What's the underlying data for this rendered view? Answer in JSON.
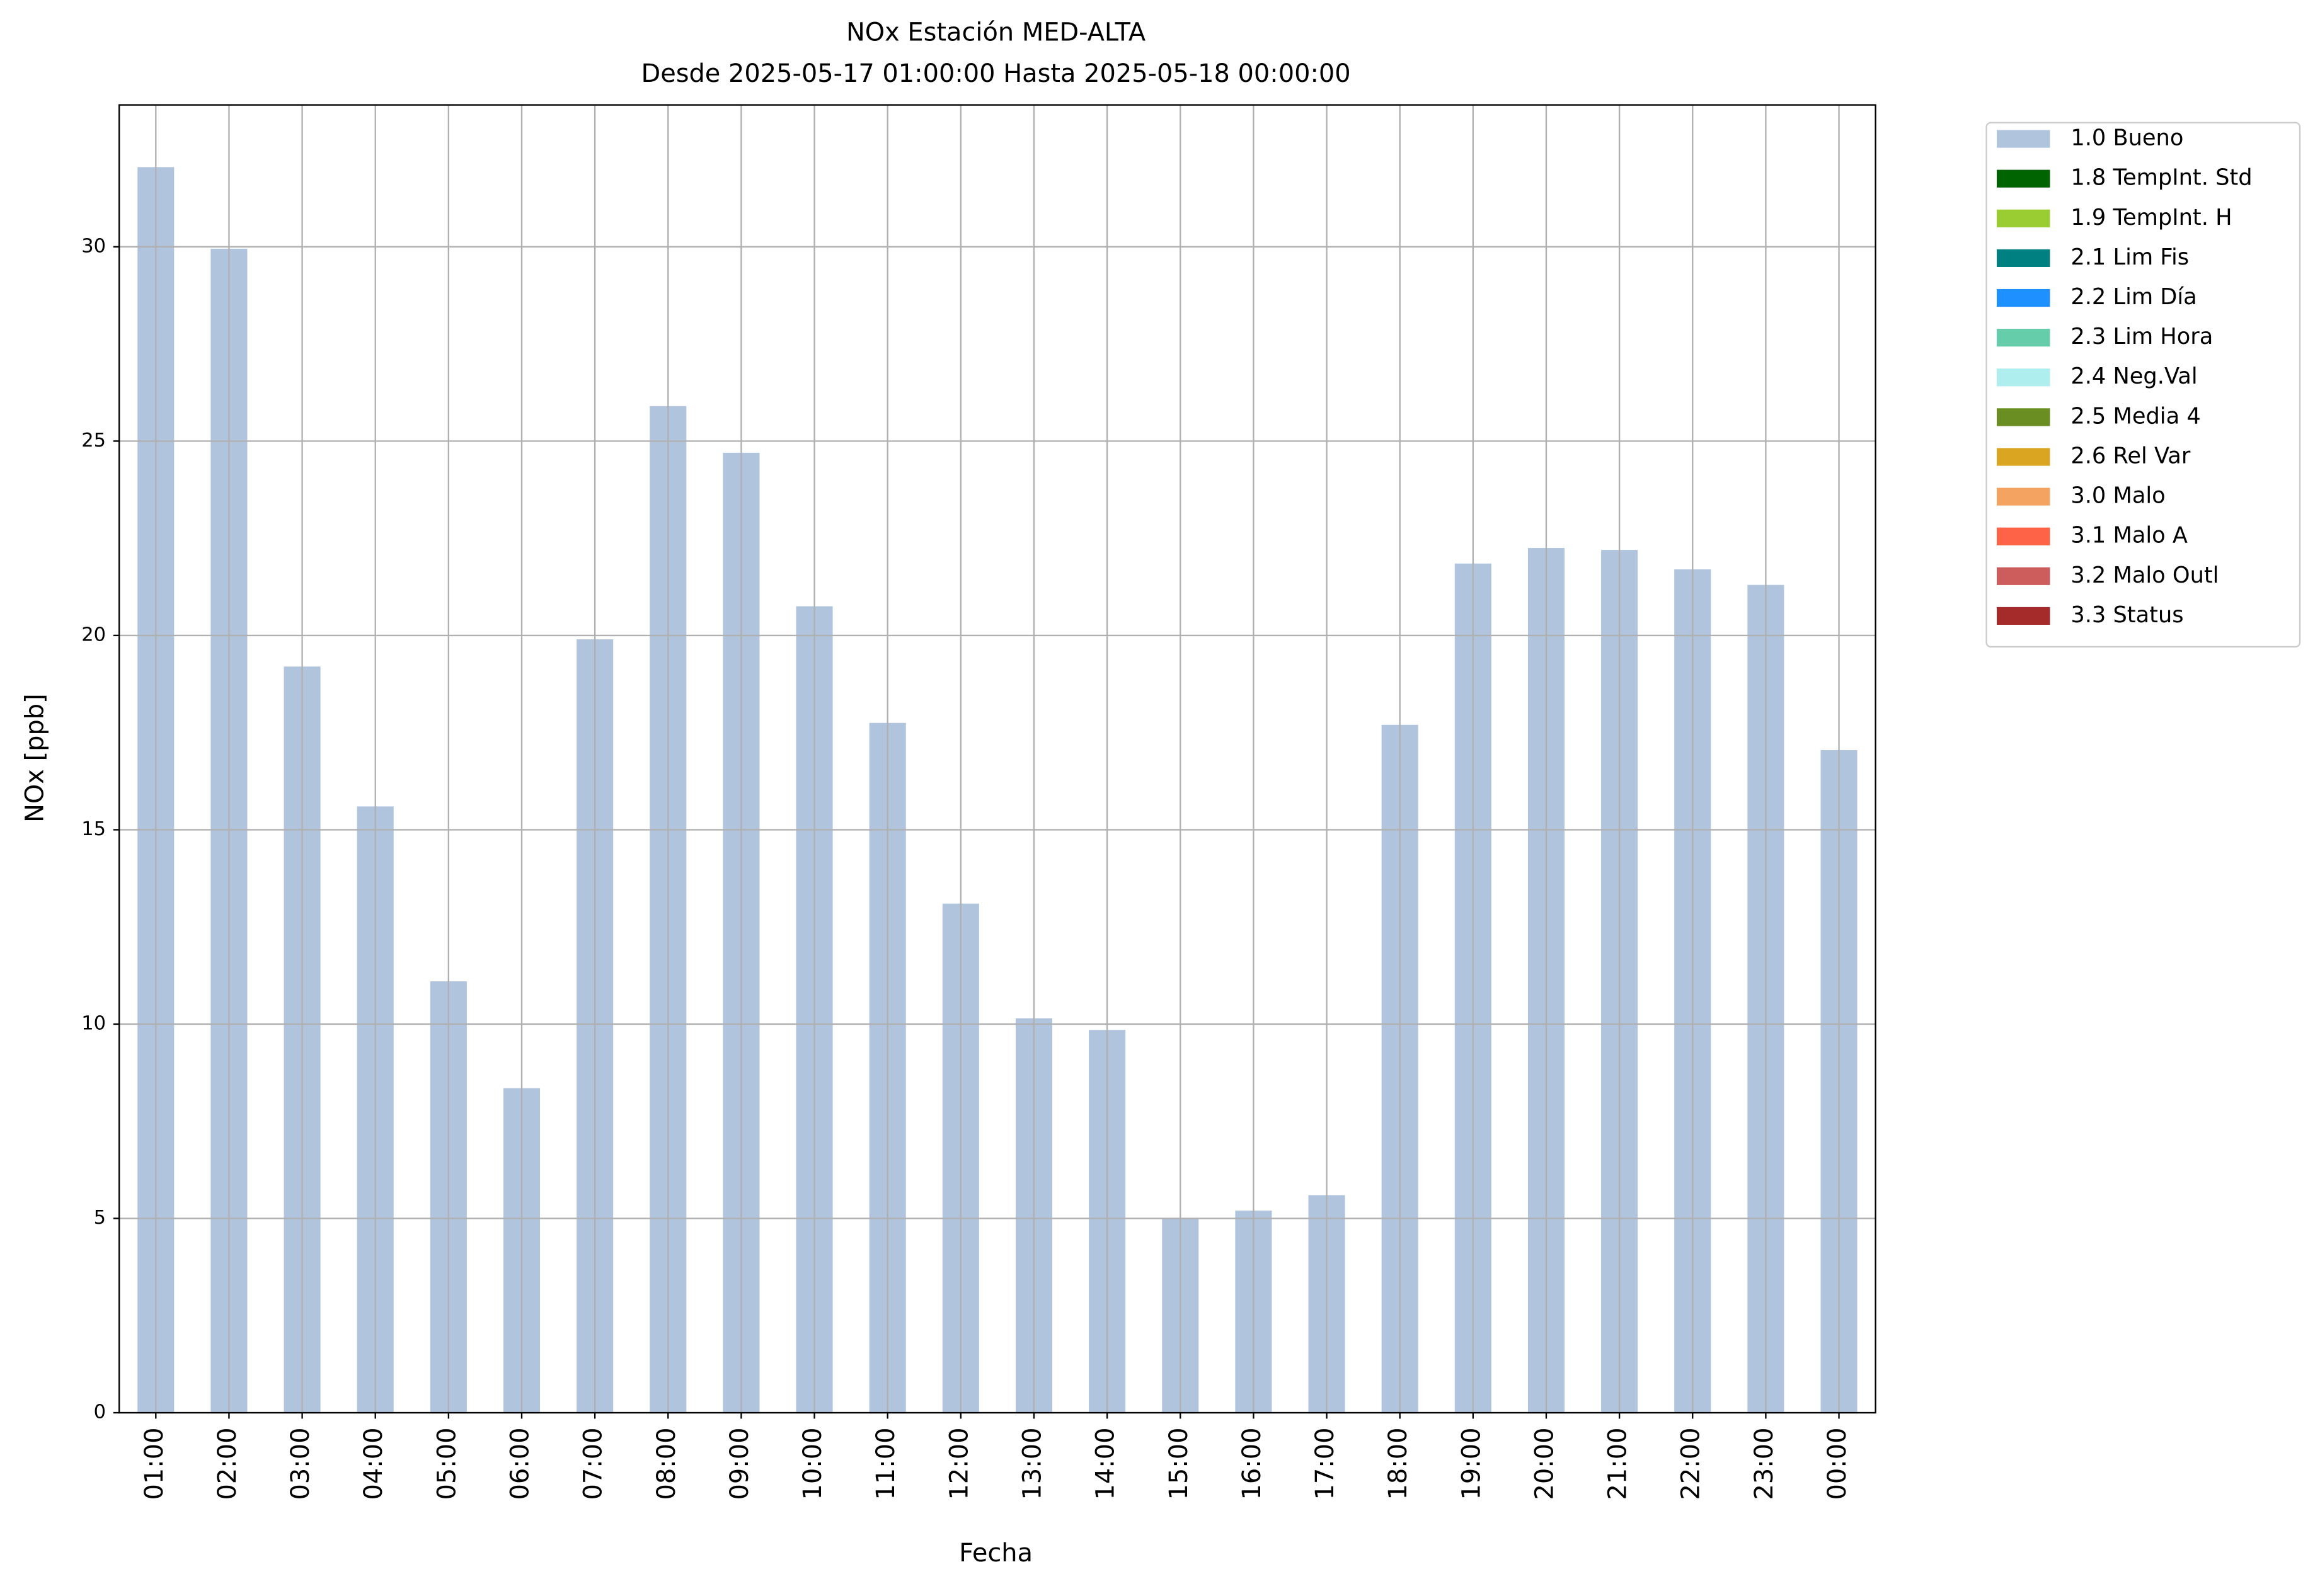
{
  "chart_data": {
    "type": "bar",
    "stacked": true,
    "title": "NOx Estación MED-ALTA",
    "subtitle": "Desde 2025-05-17 01:00:00 Hasta 2025-05-18 00:00:00",
    "xlabel": "Fecha",
    "ylabel": "NOx [ppb]",
    "categories": [
      "01:00",
      "02:00",
      "03:00",
      "04:00",
      "05:00",
      "06:00",
      "07:00",
      "08:00",
      "09:00",
      "10:00",
      "11:00",
      "12:00",
      "13:00",
      "14:00",
      "15:00",
      "16:00",
      "17:00",
      "18:00",
      "19:00",
      "20:00",
      "21:00",
      "22:00",
      "23:00",
      "00:00"
    ],
    "series": [
      {
        "name": "1.0 Bueno",
        "color": "#b0c4de",
        "values": [
          32.05,
          29.95,
          19.2,
          15.6,
          11.1,
          8.35,
          19.9,
          25.9,
          24.7,
          20.75,
          17.75,
          13.1,
          10.15,
          9.85,
          5.0,
          5.2,
          5.6,
          17.7,
          21.85,
          22.25,
          22.2,
          21.7,
          21.3,
          17.05
        ]
      },
      {
        "name": "1.8 TempInt. Std",
        "color": "#006400",
        "values": [
          0,
          0,
          0,
          0,
          0,
          0,
          0,
          0,
          0,
          0,
          0,
          0,
          0,
          0,
          0,
          0,
          0,
          0,
          0,
          0,
          0,
          0,
          0,
          0
        ]
      },
      {
        "name": "1.9 TempInt. H",
        "color": "#9acd32",
        "values": [
          0,
          0,
          0,
          0,
          0,
          0,
          0,
          0,
          0,
          0,
          0,
          0,
          0,
          0,
          0,
          0,
          0,
          0,
          0,
          0,
          0,
          0,
          0,
          0
        ]
      },
      {
        "name": "2.1 Lim Fis",
        "color": "#008080",
        "values": [
          0,
          0,
          0,
          0,
          0,
          0,
          0,
          0,
          0,
          0,
          0,
          0,
          0,
          0,
          0,
          0,
          0,
          0,
          0,
          0,
          0,
          0,
          0,
          0
        ]
      },
      {
        "name": "2.2 Lim Día",
        "color": "#1e90ff",
        "values": [
          0,
          0,
          0,
          0,
          0,
          0,
          0,
          0,
          0,
          0,
          0,
          0,
          0,
          0,
          0,
          0,
          0,
          0,
          0,
          0,
          0,
          0,
          0,
          0
        ]
      },
      {
        "name": "2.3 Lim Hora",
        "color": "#66cdaa",
        "values": [
          0,
          0,
          0,
          0,
          0,
          0,
          0,
          0,
          0,
          0,
          0,
          0,
          0,
          0,
          0,
          0,
          0,
          0,
          0,
          0,
          0,
          0,
          0,
          0
        ]
      },
      {
        "name": "2.4 Neg.Val",
        "color": "#afeeee",
        "values": [
          0,
          0,
          0,
          0,
          0,
          0,
          0,
          0,
          0,
          0,
          0,
          0,
          0,
          0,
          0,
          0,
          0,
          0,
          0,
          0,
          0,
          0,
          0,
          0
        ]
      },
      {
        "name": "2.5 Media 4",
        "color": "#6b8e23",
        "values": [
          0,
          0,
          0,
          0,
          0,
          0,
          0,
          0,
          0,
          0,
          0,
          0,
          0,
          0,
          0,
          0,
          0,
          0,
          0,
          0,
          0,
          0,
          0,
          0
        ]
      },
      {
        "name": "2.6 Rel Var",
        "color": "#daa520",
        "values": [
          0,
          0,
          0,
          0,
          0,
          0,
          0,
          0,
          0,
          0,
          0,
          0,
          0,
          0,
          0,
          0,
          0,
          0,
          0,
          0,
          0,
          0,
          0,
          0
        ]
      },
      {
        "name": "3.0 Malo",
        "color": "#f4a460",
        "values": [
          0,
          0,
          0,
          0,
          0,
          0,
          0,
          0,
          0,
          0,
          0,
          0,
          0,
          0,
          0,
          0,
          0,
          0,
          0,
          0,
          0,
          0,
          0,
          0
        ]
      },
      {
        "name": "3.1 Malo A",
        "color": "#ff6347",
        "values": [
          0,
          0,
          0,
          0,
          0,
          0,
          0,
          0,
          0,
          0,
          0,
          0,
          0,
          0,
          0,
          0,
          0,
          0,
          0,
          0,
          0,
          0,
          0,
          0
        ]
      },
      {
        "name": "3.2 Malo Outl",
        "color": "#cd5c5c",
        "values": [
          0,
          0,
          0,
          0,
          0,
          0,
          0,
          0,
          0,
          0,
          0,
          0,
          0,
          0,
          0,
          0,
          0,
          0,
          0,
          0,
          0,
          0,
          0,
          0
        ]
      },
      {
        "name": "3.3 Status",
        "color": "#a52a2a",
        "values": [
          0,
          0,
          0,
          0,
          0,
          0,
          0,
          0,
          0,
          0,
          0,
          0,
          0,
          0,
          0,
          0,
          0,
          0,
          0,
          0,
          0,
          0,
          0,
          0
        ]
      }
    ],
    "ylim": [
      0,
      33.65
    ],
    "yticks": [
      0,
      5,
      10,
      15,
      20,
      25,
      30
    ],
    "grid": true,
    "legend": "outside-upper-right"
  }
}
